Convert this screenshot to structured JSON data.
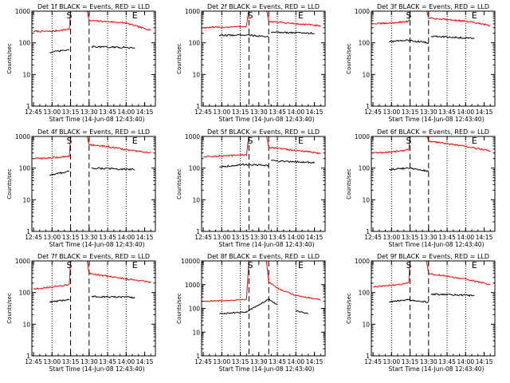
{
  "figure": {
    "xlabel": "Start Time (14-Jun-08 12:43:40)",
    "ylabel": "Counts/sec",
    "colors": {
      "events": "#000000",
      "lld": "#ff0000",
      "axis": "#000000"
    }
  },
  "chart_data": [
    {
      "type": "line",
      "title": "Det 1f BLACK = Events, RED = LLD",
      "xlim": [
        "12:43:40",
        "14:23:40"
      ],
      "ylim": [
        1,
        1000
      ],
      "yscale": "log",
      "xticks": [
        "12:45",
        "13:00",
        "13:15",
        "13:30",
        "13:45",
        "14:00",
        "14:15"
      ],
      "yticks": [
        "1",
        "10",
        "100",
        "1000"
      ],
      "markers": {
        "S": "13:14",
        "E": "14:07"
      },
      "dashed_lines": [
        "13:15",
        "13:30"
      ],
      "dotted_lines": [
        "13:00",
        "13:45",
        "14:00"
      ],
      "series": [
        {
          "color": "red",
          "points": [
            [
              "12:45",
              230
            ],
            [
              "13:00",
              230
            ],
            [
              "13:14",
              270
            ],
            [
              "13:15",
              1200
            ],
            [
              "13:28",
              1200
            ],
            [
              "13:30",
              500
            ],
            [
              "13:45",
              470
            ],
            [
              "14:00",
              420
            ],
            [
              "14:15",
              280
            ],
            [
              "14:20",
              260
            ]
          ]
        },
        {
          "color": "black",
          "points": [
            [
              "12:58",
              50
            ],
            [
              "13:14",
              60
            ],
            [
              "13:30",
              40
            ],
            [
              "13:32",
              75
            ],
            [
              "14:07",
              70
            ]
          ]
        }
      ]
    },
    {
      "type": "line",
      "title": "Det 2f BLACK = Events, RED = LLD",
      "xlim": [
        "12:43:40",
        "14:23:40"
      ],
      "ylim": [
        1,
        1000
      ],
      "yscale": "log",
      "xticks": [
        "12:45",
        "13:00",
        "13:15",
        "13:30",
        "13:45",
        "14:00",
        "14:15"
      ],
      "yticks": [
        "1",
        "10",
        "100",
        "1000"
      ],
      "markers": {
        "S": "13:23",
        "E": "14:04"
      },
      "dashed_lines": [
        "13:22",
        "13:38"
      ],
      "dotted_lines": [
        "13:00",
        "13:15",
        "13:45",
        "14:00"
      ],
      "series": [
        {
          "color": "red",
          "points": [
            [
              "12:45",
              300
            ],
            [
              "13:00",
              310
            ],
            [
              "13:20",
              330
            ],
            [
              "13:22",
              1200
            ],
            [
              "13:36",
              1200
            ],
            [
              "13:38",
              480
            ],
            [
              "13:45",
              450
            ],
            [
              "14:00",
              400
            ],
            [
              "14:15",
              360
            ],
            [
              "14:20",
              330
            ]
          ]
        },
        {
          "color": "black",
          "points": [
            [
              "12:58",
              170
            ],
            [
              "13:20",
              180
            ],
            [
              "13:38",
              150
            ],
            [
              "13:40",
              220
            ],
            [
              "14:15",
              200
            ]
          ]
        }
      ]
    },
    {
      "type": "line",
      "title": "Det 3f BLACK = Events, RED = LLD",
      "xlim": [
        "12:43:40",
        "14:23:40"
      ],
      "ylim": [
        1,
        1000
      ],
      "yscale": "log",
      "xticks": [
        "12:45",
        "13:00",
        "13:15",
        "13:30",
        "13:45",
        "14:00",
        "14:15"
      ],
      "yticks": [
        "1",
        "10",
        "100",
        "1000"
      ],
      "markers": {
        "S": "13:14",
        "E": "14:07"
      },
      "dashed_lines": [
        "13:15",
        "13:30"
      ],
      "dotted_lines": [
        "13:00",
        "13:45",
        "14:00"
      ],
      "series": [
        {
          "color": "red",
          "points": [
            [
              "12:45",
              400
            ],
            [
              "13:00",
              420
            ],
            [
              "13:14",
              480
            ],
            [
              "13:15",
              1200
            ],
            [
              "13:28",
              1200
            ],
            [
              "13:30",
              600
            ],
            [
              "13:45",
              550
            ],
            [
              "14:00",
              480
            ],
            [
              "14:15",
              380
            ],
            [
              "14:20",
              340
            ]
          ]
        },
        {
          "color": "black",
          "points": [
            [
              "12:58",
              110
            ],
            [
              "13:14",
              120
            ],
            [
              "13:30",
              100
            ],
            [
              "13:32",
              160
            ],
            [
              "14:07",
              140
            ]
          ]
        }
      ]
    },
    {
      "type": "line",
      "title": "Det 4f BLACK = Events, RED = LLD",
      "xlim": [
        "12:43:40",
        "14:23:40"
      ],
      "ylim": [
        1,
        1000
      ],
      "yscale": "log",
      "xticks": [
        "12:45",
        "13:00",
        "13:15",
        "13:30",
        "13:45",
        "14:00",
        "14:15"
      ],
      "yticks": [
        "1",
        "10",
        "100",
        "1000"
      ],
      "markers": {
        "S": "13:14",
        "E": "14:07"
      },
      "dashed_lines": [
        "13:15",
        "13:30"
      ],
      "dotted_lines": [
        "13:00",
        "13:45",
        "14:00"
      ],
      "series": [
        {
          "color": "red",
          "points": [
            [
              "12:45",
              200
            ],
            [
              "13:00",
              210
            ],
            [
              "13:14",
              240
            ],
            [
              "13:15",
              1200
            ],
            [
              "13:28",
              1200
            ],
            [
              "13:30",
              550
            ],
            [
              "13:45",
              480
            ],
            [
              "14:00",
              380
            ],
            [
              "14:15",
              320
            ],
            [
              "14:20",
              300
            ]
          ]
        },
        {
          "color": "black",
          "points": [
            [
              "12:58",
              60
            ],
            [
              "13:14",
              80
            ],
            [
              "13:30",
              60
            ],
            [
              "13:32",
              100
            ],
            [
              "14:07",
              90
            ]
          ]
        }
      ]
    },
    {
      "type": "line",
      "title": "Det 5f BLACK = Events, RED = LLD",
      "xlim": [
        "12:43:40",
        "14:23:40"
      ],
      "ylim": [
        1,
        1000
      ],
      "yscale": "log",
      "xticks": [
        "12:45",
        "13:00",
        "13:15",
        "13:30",
        "13:45",
        "14:00",
        "14:15"
      ],
      "yticks": [
        "1",
        "10",
        "100",
        "1000"
      ],
      "markers": {
        "S": "13:23",
        "E": "14:04"
      },
      "dashed_lines": [
        "13:22",
        "13:38"
      ],
      "dotted_lines": [
        "13:00",
        "13:15",
        "13:45",
        "14:00"
      ],
      "series": [
        {
          "color": "red",
          "points": [
            [
              "12:45",
              230
            ],
            [
              "13:00",
              240
            ],
            [
              "13:20",
              260
            ],
            [
              "13:22",
              1200
            ],
            [
              "13:36",
              1200
            ],
            [
              "13:38",
              450
            ],
            [
              "13:45",
              420
            ],
            [
              "14:00",
              360
            ],
            [
              "14:15",
              310
            ],
            [
              "14:20",
              290
            ]
          ]
        },
        {
          "color": "black",
          "points": [
            [
              "12:58",
              110
            ],
            [
              "13:20",
              130
            ],
            [
              "13:38",
              120
            ],
            [
              "13:40",
              170
            ],
            [
              "14:15",
              150
            ]
          ]
        }
      ]
    },
    {
      "type": "line",
      "title": "Det 6f BLACK = Events, RED = LLD",
      "xlim": [
        "12:43:40",
        "14:23:40"
      ],
      "ylim": [
        1,
        1000
      ],
      "yscale": "log",
      "xticks": [
        "12:45",
        "13:00",
        "13:15",
        "13:30",
        "13:45",
        "14:00",
        "14:15"
      ],
      "yticks": [
        "1",
        "10",
        "100",
        "1000"
      ],
      "markers": {
        "S": "13:14",
        "E": "14:07"
      },
      "dashed_lines": [
        "13:15",
        "13:30"
      ],
      "dotted_lines": [
        "13:00",
        "13:45",
        "14:00"
      ],
      "series": [
        {
          "color": "red",
          "points": [
            [
              "12:45",
              300
            ],
            [
              "13:00",
              320
            ],
            [
              "13:14",
              380
            ],
            [
              "13:15",
              1200
            ],
            [
              "13:28",
              1200
            ],
            [
              "13:30",
              700
            ],
            [
              "13:45",
              600
            ],
            [
              "14:00",
              480
            ],
            [
              "14:15",
              380
            ],
            [
              "14:20",
              340
            ]
          ]
        },
        {
          "color": "black",
          "points": [
            [
              "12:58",
              90
            ],
            [
              "13:14",
              100
            ],
            [
              "13:30",
              80
            ],
            [
              "13:32",
              140
            ],
            [
              "14:07",
              110
            ]
          ]
        }
      ]
    },
    {
      "type": "line",
      "title": "Det 7f BLACK = Events, RED = LLD",
      "xlim": [
        "12:43:40",
        "14:23:40"
      ],
      "ylim": [
        1,
        1000
      ],
      "yscale": "log",
      "xticks": [
        "12:45",
        "13:00",
        "13:15",
        "13:30",
        "13:45",
        "14:00",
        "14:15"
      ],
      "yticks": [
        "1",
        "10",
        "100",
        "1000"
      ],
      "markers": {
        "S": "13:14",
        "E": "14:07"
      },
      "dashed_lines": [
        "13:15",
        "13:30"
      ],
      "dotted_lines": [
        "13:00",
        "13:45",
        "14:00"
      ],
      "series": [
        {
          "color": "red",
          "points": [
            [
              "12:45",
              130
            ],
            [
              "13:00",
              150
            ],
            [
              "13:14",
              180
            ],
            [
              "13:15",
              1200
            ],
            [
              "13:28",
              1200
            ],
            [
              "13:30",
              400
            ],
            [
              "13:45",
              330
            ],
            [
              "14:00",
              270
            ],
            [
              "14:15",
              230
            ],
            [
              "14:20",
              210
            ]
          ]
        },
        {
          "color": "black",
          "points": [
            [
              "12:58",
              50
            ],
            [
              "13:14",
              60
            ],
            [
              "13:30",
              45
            ],
            [
              "13:32",
              75
            ],
            [
              "14:07",
              70
            ]
          ]
        }
      ]
    },
    {
      "type": "line",
      "title": "Det 8f BLACK = Events, RED = LLD",
      "xlim": [
        "12:43:40",
        "14:23:40"
      ],
      "ylim": [
        1,
        10000
      ],
      "yscale": "log",
      "xticks": [
        "12:45",
        "13:00",
        "13:15",
        "13:30",
        "13:45",
        "14:00",
        "14:15"
      ],
      "yticks": [
        "1",
        "10",
        "100",
        "1000",
        "10000"
      ],
      "markers": {
        "S": "13:23",
        "E": "14:04"
      },
      "dashed_lines": [
        "13:22",
        "13:38"
      ],
      "dotted_lines": [
        "13:00",
        "13:15",
        "13:45",
        "14:00"
      ],
      "series": [
        {
          "color": "red",
          "points": [
            [
              "12:45",
              200
            ],
            [
              "13:00",
              210
            ],
            [
              "13:20",
              240
            ],
            [
              "13:22",
              12000
            ],
            [
              "13:36",
              12000
            ],
            [
              "13:38",
              1300
            ],
            [
              "13:45",
              700
            ],
            [
              "14:00",
              350
            ],
            [
              "14:15",
              260
            ],
            [
              "14:20",
              230
            ]
          ]
        },
        {
          "color": "black",
          "points": [
            [
              "12:58",
              60
            ],
            [
              "13:20",
              70
            ],
            [
              "13:38",
              250
            ],
            [
              "13:45",
              140
            ],
            [
              "14:00",
              80
            ],
            [
              "14:10",
              60
            ]
          ]
        }
      ]
    },
    {
      "type": "line",
      "title": "Det 9f BLACK = Events, RED = LLD",
      "xlim": [
        "12:43:40",
        "14:23:40"
      ],
      "ylim": [
        1,
        1000
      ],
      "yscale": "log",
      "xticks": [
        "12:45",
        "13:00",
        "13:15",
        "13:30",
        "13:45",
        "14:00",
        "14:15"
      ],
      "yticks": [
        "1",
        "10",
        "100",
        "1000"
      ],
      "markers": {
        "S": "13:14",
        "E": "14:07"
      },
      "dashed_lines": [
        "13:15",
        "13:30"
      ],
      "dotted_lines": [
        "13:00",
        "13:45",
        "14:00"
      ],
      "series": [
        {
          "color": "red",
          "points": [
            [
              "12:45",
              150
            ],
            [
              "13:00",
              170
            ],
            [
              "13:14",
              200
            ],
            [
              "13:15",
              1200
            ],
            [
              "13:28",
              1200
            ],
            [
              "13:30",
              400
            ],
            [
              "13:45",
              330
            ],
            [
              "14:00",
              260
            ],
            [
              "14:15",
              200
            ],
            [
              "14:20",
              180
            ]
          ]
        },
        {
          "color": "black",
          "points": [
            [
              "12:58",
              50
            ],
            [
              "13:14",
              60
            ],
            [
              "13:30",
              50
            ],
            [
              "13:32",
              90
            ],
            [
              "14:07",
              80
            ]
          ]
        }
      ]
    }
  ]
}
